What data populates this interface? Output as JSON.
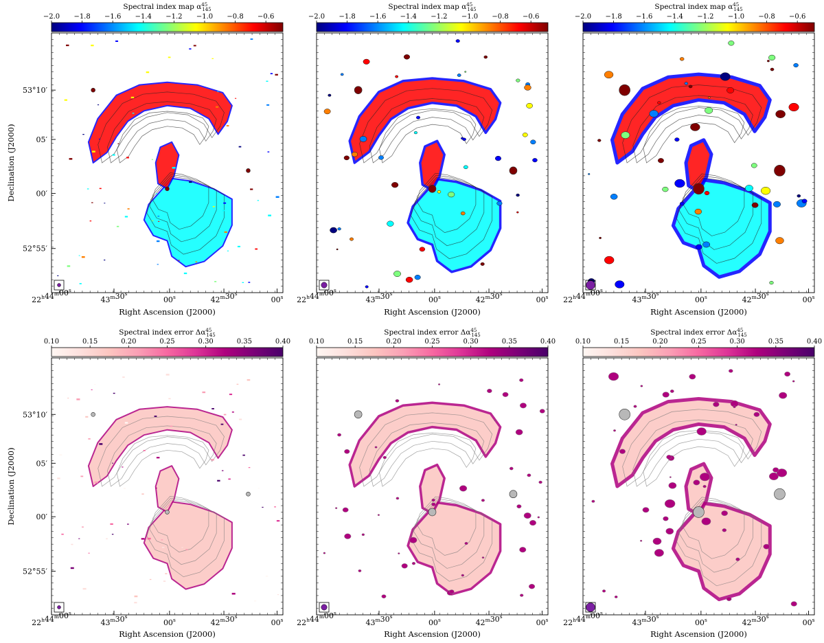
{
  "figure": {
    "rows": [
      {
        "colorbar_title": "Spectral index map α",
        "colorbar_sub": "145",
        "colorbar_sup": "45",
        "colorbar_ticks": [
          "−2.0",
          "−1.8",
          "−1.6",
          "−1.4",
          "−1.2",
          "−1.0",
          "−0.8",
          "−0.6"
        ],
        "colormap": "jet",
        "colormap_stops": [
          "#00007f",
          "#0000ff",
          "#007fff",
          "#00ffff",
          "#7fff7f",
          "#ffff00",
          "#ff7f00",
          "#ff0000",
          "#7f0000"
        ]
      },
      {
        "colorbar_title": "Spectral index error Δα",
        "colorbar_sub": "145",
        "colorbar_sup": "45",
        "colorbar_ticks": [
          "0.10",
          "0.15",
          "0.20",
          "0.25",
          "0.30",
          "0.35",
          "0.40"
        ],
        "colormap": "RdPu",
        "colormap_stops": [
          "#fff7f3",
          "#fde0dd",
          "#fcc5c0",
          "#fa9fb5",
          "#f768a1",
          "#dd3497",
          "#ae017e",
          "#7a0177",
          "#49006a"
        ]
      }
    ],
    "y_axis": {
      "label": "Declination (J2000)",
      "ticks": [
        {
          "text": "53°10′"
        },
        {
          "text": "05′"
        },
        {
          "text": "00′"
        },
        {
          "text": "52°55′"
        }
      ]
    },
    "x_axis": {
      "label": "Right Ascension (J2000)",
      "ticks": [
        {
          "base": "22",
          "h": "h",
          "mid": "44",
          "m": "m",
          "s_val": "00",
          "s": "s"
        },
        {
          "base": "",
          "h": "",
          "mid": "43",
          "m": "m",
          "s_val": "30",
          "s": "s"
        },
        {
          "base": "",
          "h": "",
          "mid": "",
          "m": "",
          "s_val": "00",
          "s": "s"
        },
        {
          "base": "",
          "h": "",
          "mid": "42",
          "m": "m",
          "s_val": "30",
          "s": "s"
        },
        {
          "base": "",
          "h": "",
          "mid": "",
          "m": "",
          "s_val": "00",
          "s": "s"
        }
      ]
    },
    "beam_color": "#7b1fa2"
  }
}
